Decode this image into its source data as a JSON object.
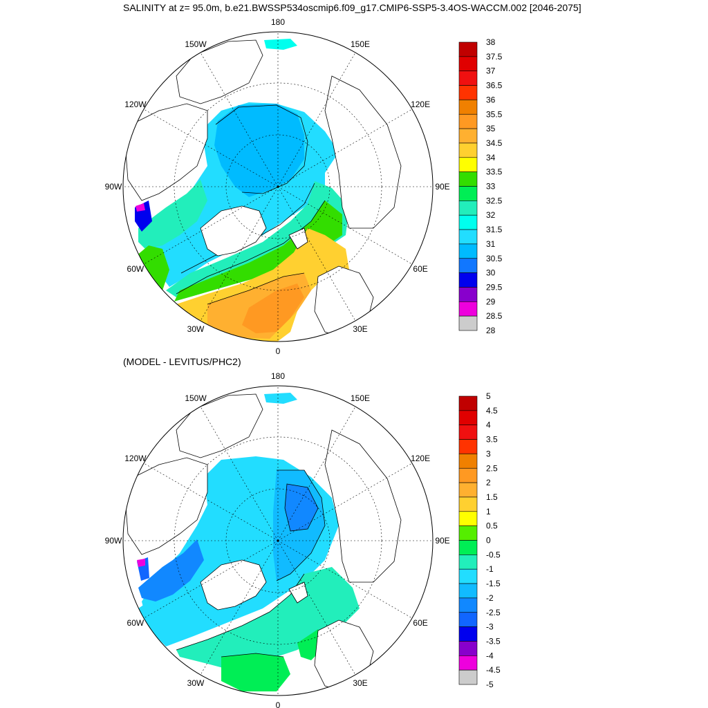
{
  "title": "SALINITY at z=  95.0m, b.e21.BWSSP534oscmip6.f09_g17.CMIP6-SSP5-3.4OS-WACCM.002 [2046-2075]",
  "diff_title": "(MODEL - LEVITUS/PHC2)",
  "lon_labels": [
    {
      "text": "180",
      "lon": 180
    },
    {
      "text": "150E",
      "lon": 150
    },
    {
      "text": "120E",
      "lon": 120
    },
    {
      "text": "90E",
      "lon": 90
    },
    {
      "text": "60E",
      "lon": 60
    },
    {
      "text": "30E",
      "lon": 30
    },
    {
      "text": "0",
      "lon": 0
    },
    {
      "text": "30W",
      "lon": -30
    },
    {
      "text": "60W",
      "lon": -60
    },
    {
      "text": "90W",
      "lon": -90
    },
    {
      "text": "120W",
      "lon": -120
    },
    {
      "text": "150W",
      "lon": -150
    }
  ],
  "salinity_colorbar": {
    "labels": [
      "38",
      "37.5",
      "37",
      "36.5",
      "36",
      "35.5",
      "35",
      "34.5",
      "34",
      "33.5",
      "33",
      "32.5",
      "32",
      "31.5",
      "31",
      "30.5",
      "30",
      "29.5",
      "29",
      "28.5",
      "28"
    ],
    "colors": [
      "#c00000",
      "#e00000",
      "#f01010",
      "#ff3300",
      "#f08000",
      "#ff9922",
      "#ffb030",
      "#ffd030",
      "#ffff00",
      "#33dd00",
      "#00ee55",
      "#22eebb",
      "#00ffee",
      "#22ddff",
      "#00bbff",
      "#1177ff",
      "#0000ee",
      "#8800cc",
      "#ee00dd",
      "#cccccc",
      "#707070"
    ]
  },
  "anomaly_colorbar": {
    "labels": [
      "5",
      "4.5",
      "4",
      "3.5",
      "3",
      "2.5",
      "2",
      "1.5",
      "1",
      "0.5",
      "0",
      "-0.5",
      "-1",
      "-1.5",
      "-2",
      "-2.5",
      "-3",
      "-3.5",
      "-4",
      "-4.5",
      "-5"
    ],
    "colors": [
      "#c00000",
      "#e00000",
      "#f01010",
      "#ff3300",
      "#f08000",
      "#ff9922",
      "#ffb030",
      "#ffd030",
      "#ffff00",
      "#55ee00",
      "#00ee55",
      "#22eebb",
      "#22ddff",
      "#11bbff",
      "#1188ff",
      "#1166ff",
      "#0000ee",
      "#8800cc",
      "#ee00dd",
      "#cccccc",
      "#707070"
    ]
  }
}
